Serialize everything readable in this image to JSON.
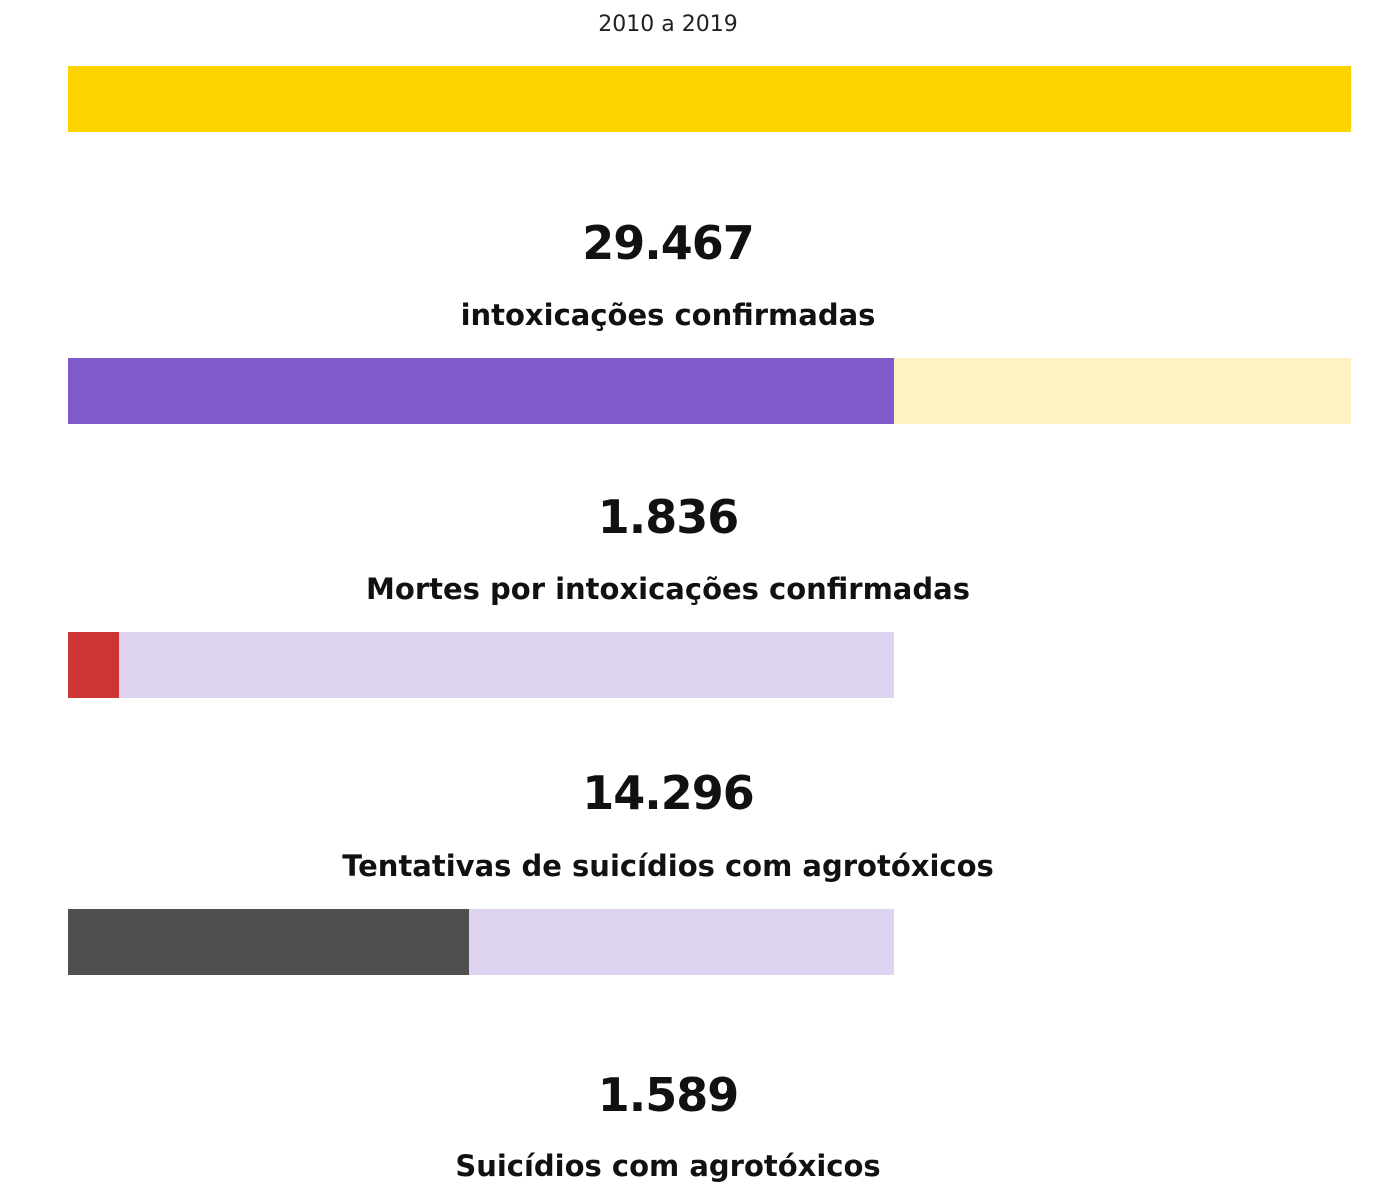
{
  "chart_data": {
    "type": "bar",
    "title": "",
    "subtitle": "2010 a 2019",
    "colors": {
      "total": "#FDD400",
      "intoxicacoes": "#7F5ACA",
      "intoxicacoes_track": "#FFF2C2",
      "mortes": "#CF3434",
      "mortes_track": "#DED4F2",
      "tentativas": "#4F4F4F",
      "tentativas_track": "#DED4F2"
    },
    "bars": [
      {
        "id": "total",
        "value_fraction_of_parent": 1.0,
        "value": "",
        "label": ""
      },
      {
        "id": "intoxicacoes",
        "value": "29.467",
        "numeric_value": 29467,
        "label": "intoxicações confirmadas",
        "fraction_of_total": 0.644
      },
      {
        "id": "mortes",
        "value": "1.836",
        "numeric_value": 1836,
        "label": "Mortes por intoxicações confirmadas",
        "fraction_of_intoxicacoes": 0.0623
      },
      {
        "id": "tentativas",
        "value": "14.296",
        "numeric_value": 14296,
        "label": "Tentativas de suicídios com agrotóxicos",
        "fraction_of_intoxicacoes": 0.4851
      },
      {
        "id": "suicidios",
        "value": "1.589",
        "numeric_value": 1589,
        "label": "Suicídios com agrotóxicos"
      }
    ]
  }
}
